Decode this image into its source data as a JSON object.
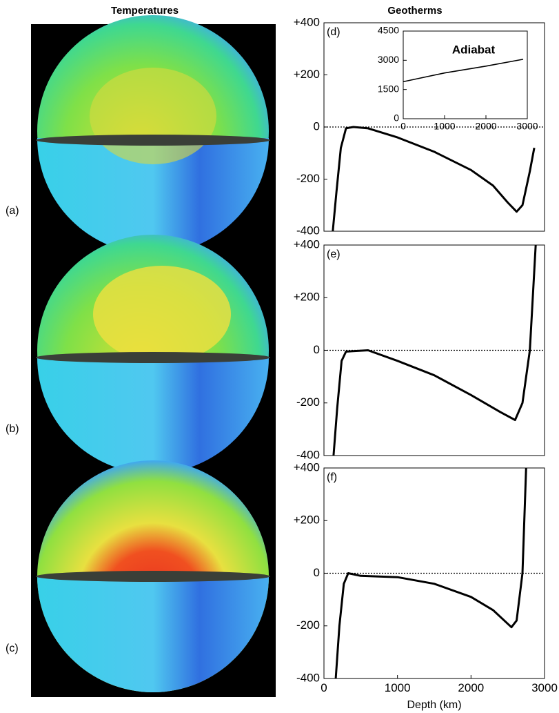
{
  "column_titles": [
    "Temperatures",
    "Geotherms"
  ],
  "globe_labels": [
    "(a)",
    "(b)",
    "(c)"
  ],
  "chart_data": [
    {
      "type": "line",
      "label": "(d)",
      "hline": 0,
      "x": [
        120,
        170,
        230,
        300,
        400,
        600,
        1000,
        1500,
        2000,
        2300,
        2500,
        2620,
        2700,
        2800,
        2860
      ],
      "series": [
        {
          "color": "#000000",
          "values": [
            -400,
            -250,
            -80,
            -5,
            0,
            -5,
            -40,
            -95,
            -165,
            -225,
            -290,
            -325,
            -300,
            -170,
            -80
          ]
        }
      ],
      "xlim": [
        0,
        3000
      ],
      "ylim": [
        -400,
        400
      ],
      "yticks": [
        {
          "value": 400,
          "label": "+400"
        },
        {
          "value": 200,
          "label": "+200"
        },
        0,
        -200,
        -400
      ]
    },
    {
      "type": "line",
      "label": "(e)",
      "hline": 0,
      "x": [
        130,
        180,
        240,
        300,
        600,
        1000,
        1500,
        2000,
        2400,
        2600,
        2700,
        2800,
        2880
      ],
      "series": [
        {
          "color": "#000000",
          "values": [
            -400,
            -220,
            -40,
            -5,
            0,
            -40,
            -95,
            -170,
            -235,
            -265,
            -200,
            0,
            400
          ]
        }
      ],
      "xlim": [
        0,
        3000
      ],
      "ylim": [
        -400,
        400
      ],
      "yticks": [
        {
          "value": 400,
          "label": "+400"
        },
        {
          "value": 200,
          "label": "+200"
        },
        0,
        -200,
        -400
      ]
    },
    {
      "type": "line",
      "label": "(f)",
      "hline": 0,
      "x_label": "Depth (km)",
      "x": [
        160,
        210,
        270,
        330,
        500,
        1000,
        1500,
        2000,
        2300,
        2550,
        2620,
        2700,
        2750
      ],
      "series": [
        {
          "color": "#000000",
          "values": [
            -400,
            -200,
            -40,
            0,
            -10,
            -15,
            -40,
            -90,
            -140,
            -205,
            -180,
            0,
            400
          ]
        }
      ],
      "xlim": [
        0,
        3000
      ],
      "ylim": [
        -400,
        400
      ],
      "xticks": [
        0,
        1000,
        2000,
        3000
      ],
      "yticks": [
        {
          "value": 400,
          "label": "+400"
        },
        {
          "value": 200,
          "label": "+200"
        },
        0,
        -200,
        -400
      ]
    },
    {
      "type": "line",
      "title": "Adiabat",
      "x": [
        0,
        1000,
        2000,
        2900
      ],
      "series": [
        {
          "color": "#000000",
          "values": [
            1900,
            2350,
            2700,
            3050
          ]
        }
      ],
      "xlim": [
        0,
        3000
      ],
      "ylim": [
        0,
        4500
      ],
      "xticks": [
        0,
        1000,
        2000,
        3000
      ],
      "yticks": [
        0,
        1500,
        3000,
        4500
      ]
    }
  ]
}
